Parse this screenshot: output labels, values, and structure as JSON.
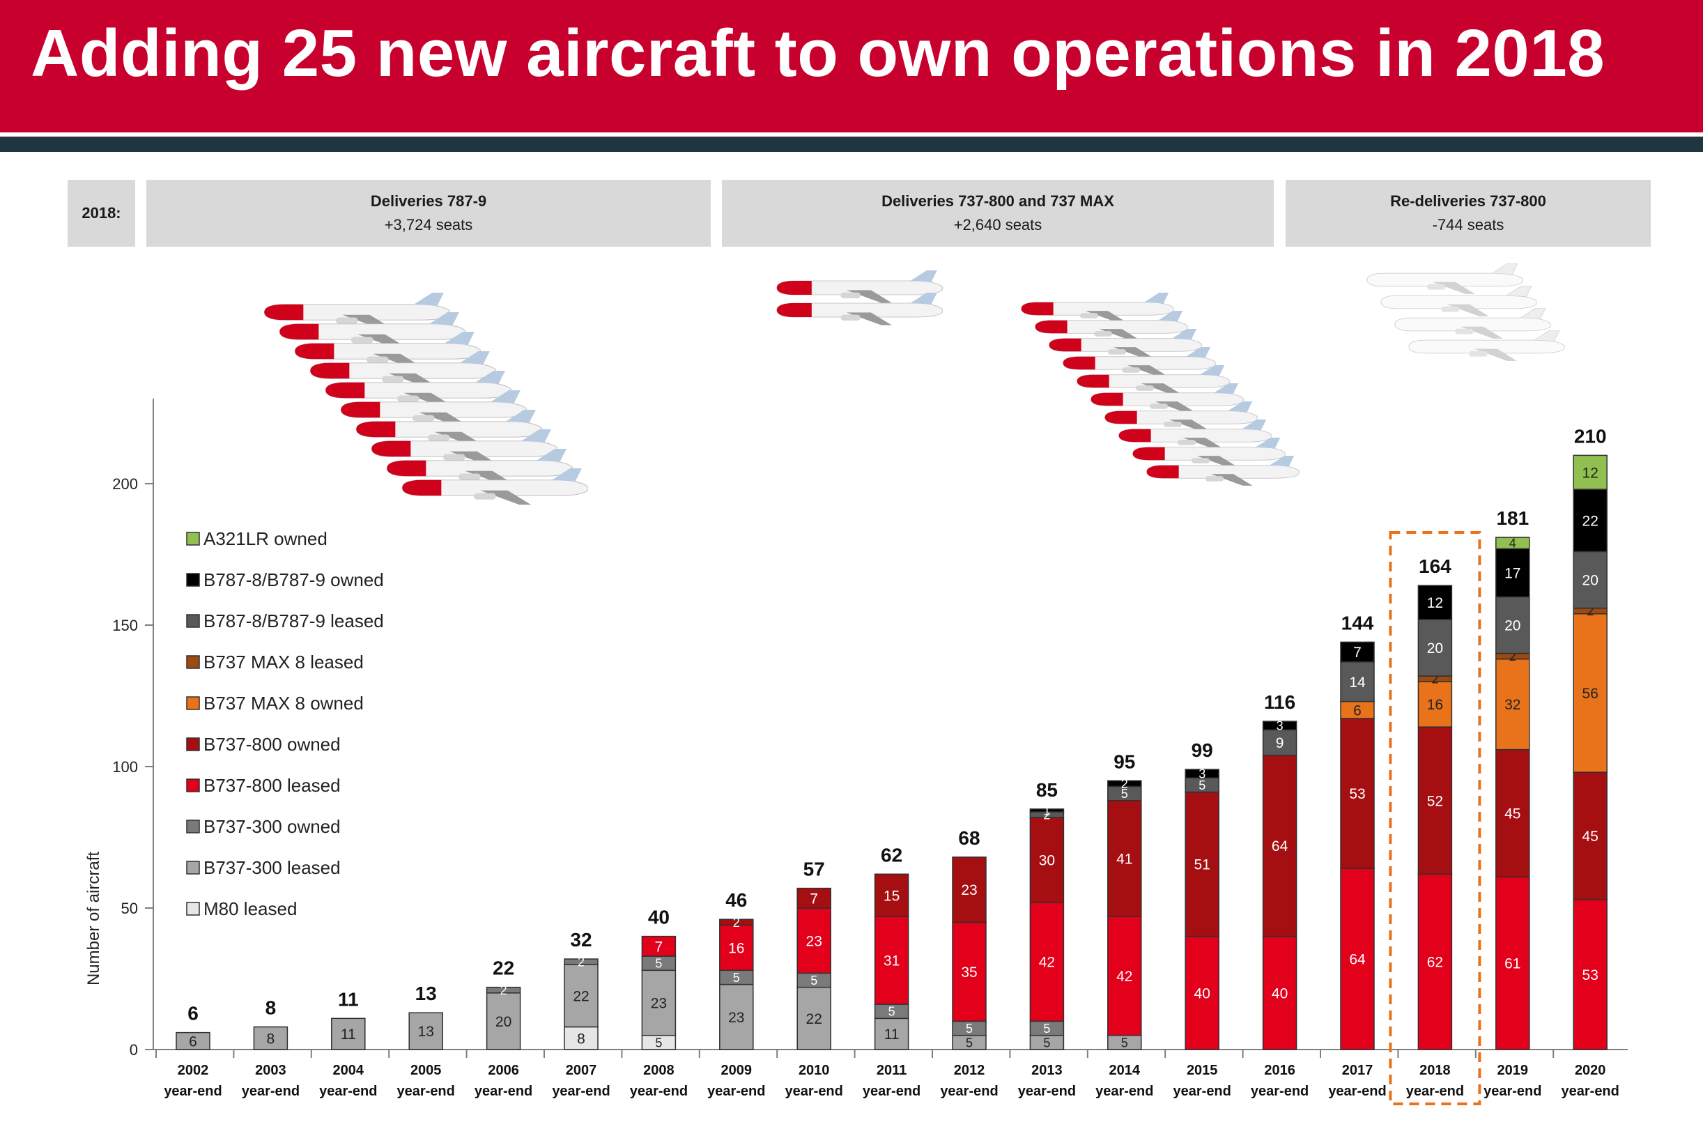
{
  "title": "Adding 25 new aircraft to own operations in 2018",
  "year_label": "2018:",
  "deliveries": [
    {
      "heading": "Deliveries 787-9",
      "seats": "+3,724 seats"
    },
    {
      "heading": "Deliveries 737-800 and 737 MAX",
      "seats": "+2,640 seats"
    },
    {
      "heading": "Re-deliveries 737-800",
      "seats": "-744 seats"
    }
  ],
  "icons": [
    "aircraft-787-9-fleet-icon",
    "aircraft-737-fleet-icon",
    "aircraft-white-737-icon"
  ],
  "chart_data": {
    "type": "bar",
    "stacked": true,
    "ylabel": "Number of aircraft",
    "ylim": [
      0,
      230
    ],
    "yticks": [
      0,
      50,
      100,
      150,
      200
    ],
    "categories": [
      "2002",
      "2003",
      "2004",
      "2005",
      "2006",
      "2007",
      "2008",
      "2009",
      "2010",
      "2011",
      "2012",
      "2013",
      "2014",
      "2015",
      "2016",
      "2017",
      "2018",
      "2019",
      "2020"
    ],
    "category_sublabel": "year-end",
    "highlight_category": "2018",
    "totals": [
      6,
      8,
      11,
      13,
      22,
      32,
      40,
      46,
      57,
      62,
      68,
      85,
      95,
      99,
      116,
      144,
      164,
      181,
      210
    ],
    "legend_position": "left",
    "series": [
      {
        "name": "M80 leased",
        "color": "#e6e6e6",
        "text_color": "#222222",
        "values": [
          0,
          0,
          0,
          0,
          0,
          8,
          5,
          0,
          0,
          0,
          0,
          0,
          0,
          0,
          0,
          0,
          0,
          0,
          0
        ]
      },
      {
        "name": "B737-300 leased",
        "color": "#a6a6a6",
        "text_color": "#222222",
        "values": [
          6,
          8,
          11,
          13,
          20,
          22,
          23,
          23,
          22,
          11,
          5,
          5,
          5,
          0,
          0,
          0,
          0,
          0,
          0
        ]
      },
      {
        "name": "B737-300 owned",
        "color": "#7a7a7a",
        "text_color": "#ffffff",
        "values": [
          0,
          0,
          0,
          0,
          2,
          2,
          5,
          5,
          5,
          5,
          5,
          5,
          0,
          0,
          0,
          0,
          0,
          0,
          0
        ]
      },
      {
        "name": "B737-800 leased",
        "color": "#e2001a",
        "text_color": "#ffffff",
        "values": [
          0,
          0,
          0,
          0,
          0,
          0,
          7,
          16,
          23,
          31,
          35,
          42,
          42,
          40,
          40,
          64,
          62,
          61,
          53
        ]
      },
      {
        "name": "B737-800 owned",
        "color": "#a50f12",
        "text_color": "#ffffff",
        "values": [
          0,
          0,
          0,
          0,
          0,
          0,
          0,
          2,
          7,
          15,
          23,
          30,
          41,
          51,
          64,
          53,
          52,
          45,
          45
        ]
      },
      {
        "name": "B737 MAX 8 owned",
        "color": "#e8731a",
        "text_color": "#222222",
        "values": [
          0,
          0,
          0,
          0,
          0,
          0,
          0,
          0,
          0,
          0,
          0,
          0,
          0,
          0,
          0,
          6,
          16,
          32,
          56
        ]
      },
      {
        "name": "B737 MAX 8 leased",
        "color": "#9c4a12",
        "text_color": "#222222",
        "values": [
          0,
          0,
          0,
          0,
          0,
          0,
          0,
          0,
          0,
          0,
          0,
          0,
          0,
          0,
          0,
          0,
          2,
          2,
          2
        ]
      },
      {
        "name": "B787-8/B787-9 leased",
        "color": "#595959",
        "text_color": "#ffffff",
        "values": [
          0,
          0,
          0,
          0,
          0,
          0,
          0,
          0,
          0,
          0,
          0,
          2,
          5,
          5,
          9,
          14,
          20,
          20,
          20
        ]
      },
      {
        "name": "B787-8/B787-9 owned",
        "color": "#000000",
        "text_color": "#ffffff",
        "values": [
          0,
          0,
          0,
          0,
          0,
          0,
          0,
          0,
          0,
          0,
          0,
          1,
          2,
          3,
          3,
          7,
          12,
          17,
          22
        ]
      },
      {
        "name": "A321LR owned",
        "color": "#92c050",
        "text_color": "#222222",
        "values": [
          0,
          0,
          0,
          0,
          0,
          0,
          0,
          0,
          0,
          0,
          0,
          0,
          0,
          0,
          0,
          0,
          0,
          4,
          12
        ]
      }
    ]
  }
}
